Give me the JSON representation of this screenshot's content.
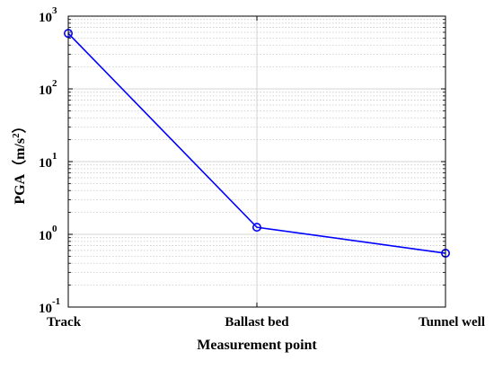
{
  "chart_data": {
    "type": "line",
    "title": "",
    "xlabel": "Measurement point",
    "ylabel": {
      "prefix": "PGA（m/s",
      "superscript": "2",
      "suffix": "）"
    },
    "categories": [
      "Track",
      "Ballast bed",
      "Tunnel well"
    ],
    "series": [
      {
        "values": [
          580,
          1.25,
          0.55
        ],
        "color": "#0000ff",
        "marker": "circle"
      }
    ],
    "yscale": "log",
    "ylim": [
      0.1,
      1000
    ],
    "yticks": [
      {
        "base": "10",
        "exp": "-1"
      },
      {
        "base": "10",
        "exp": "0"
      },
      {
        "base": "10",
        "exp": "1"
      },
      {
        "base": "10",
        "exp": "2"
      },
      {
        "base": "10",
        "exp": "3"
      }
    ],
    "grid": true,
    "colors": {
      "line": "#0000ff",
      "grid": "#c8c8c8",
      "axes": "#000000"
    }
  }
}
